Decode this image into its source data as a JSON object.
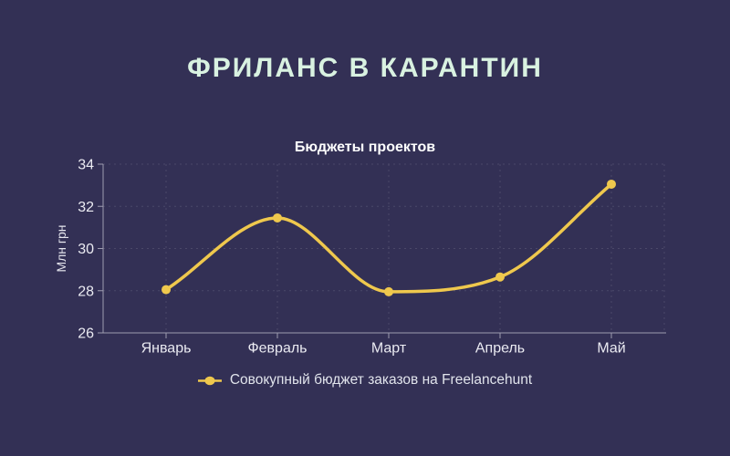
{
  "page": {
    "title": "ФРИЛАНС В КАРАНТИН",
    "background_color": "#333055",
    "title_color": "#d9f2e1"
  },
  "chart_data": {
    "type": "line",
    "title": "Бюджеты проектов",
    "ylabel": "Млн грн",
    "categories": [
      "Январь",
      "Февраль",
      "Март",
      "Апрель",
      "Май"
    ],
    "series": [
      {
        "name": "Совокупный бюджет заказов на Freelancehunt",
        "values": [
          28.05,
          31.45,
          27.95,
          28.65,
          33.05
        ],
        "color": "#efc84d",
        "marker": "circle"
      }
    ],
    "ylim": [
      26,
      34
    ],
    "yticks": [
      26,
      28,
      30,
      32,
      34
    ],
    "grid": "dashed",
    "legend_position": "bottom",
    "colors": {
      "axis_line": "#9e9cb0",
      "grid_line": "#4b4869",
      "tick_text": "#ebebf2",
      "axis_title_text": "#e6e6ee",
      "chart_title_text": "#ffffff",
      "legend_text": "#e1e4ec"
    }
  }
}
